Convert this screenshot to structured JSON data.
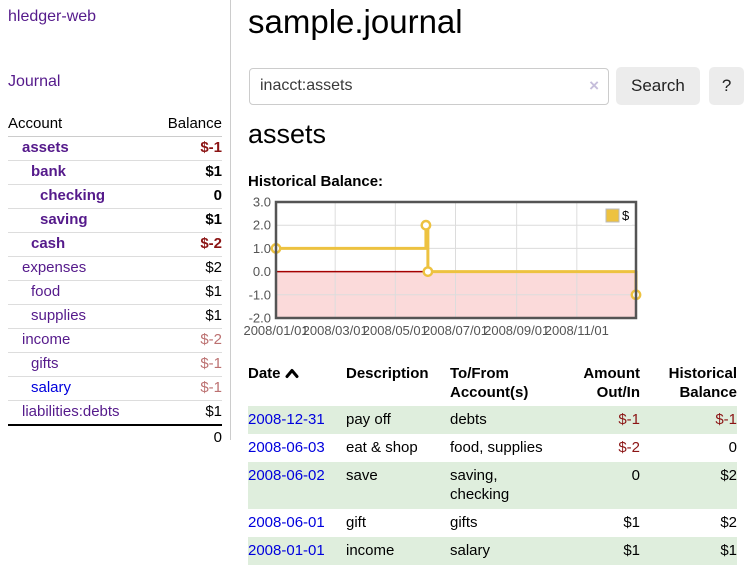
{
  "brand": {
    "label": "hledger-web"
  },
  "nav": {
    "journal_label": "Journal"
  },
  "sidebar": {
    "columns": {
      "account": "Account",
      "balance": "Balance"
    },
    "accounts": [
      {
        "name": "assets",
        "balance": "$-1",
        "indent": 1,
        "bold": true,
        "balance_tone": "negative-strong"
      },
      {
        "name": "bank",
        "balance": "$1",
        "indent": 2,
        "bold": true
      },
      {
        "name": "checking",
        "balance": "0",
        "indent": 3,
        "bold": true
      },
      {
        "name": "saving",
        "balance": "$1",
        "indent": 3,
        "bold": true
      },
      {
        "name": "cash",
        "balance": "$-2",
        "indent": 2,
        "bold": true,
        "balance_tone": "negative-strong"
      },
      {
        "name": "expenses",
        "balance": "$2",
        "indent": 1
      },
      {
        "name": "food",
        "balance": "$1",
        "indent": 2
      },
      {
        "name": "supplies",
        "balance": "$1",
        "indent": 2
      },
      {
        "name": "income",
        "balance": "$-2",
        "indent": 1,
        "balance_tone": "negative-faded"
      },
      {
        "name": "gifts",
        "balance": "$-1",
        "indent": 2,
        "balance_tone": "negative-faded"
      },
      {
        "name": "salary",
        "balance": "$-1",
        "indent": 2,
        "balance_tone": "negative-faded",
        "link_tone": "unvisited"
      },
      {
        "name": "liabilities:debts",
        "balance": "$1",
        "indent": 1
      }
    ],
    "total": "0"
  },
  "page": {
    "title": "sample.journal",
    "account_heading": "assets",
    "chart_heading": "Historical Balance:"
  },
  "search": {
    "value": "inacct:assets",
    "clear_label": "×",
    "submit_label": "Search",
    "help_label": "?"
  },
  "chart_data": {
    "type": "line",
    "step": true,
    "title": "Historical Balance:",
    "x_range": [
      "2008-01-01",
      "2008-12-31"
    ],
    "ylim": [
      -2,
      3
    ],
    "y_ticks": [
      {
        "value": 3,
        "label": "3.0"
      },
      {
        "value": 2,
        "label": "2.0"
      },
      {
        "value": 1,
        "label": "1.0"
      },
      {
        "value": 0,
        "label": "0.0"
      },
      {
        "value": -1,
        "label": "-1.0"
      },
      {
        "value": -2,
        "label": "-2.0"
      }
    ],
    "x_ticks": [
      {
        "date": "2008-01-01",
        "label": "2008/01/01"
      },
      {
        "date": "2008-03-01",
        "label": "2008/03/01"
      },
      {
        "date": "2008-05-01",
        "label": "2008/05/01"
      },
      {
        "date": "2008-07-01",
        "label": "2008/07/01"
      },
      {
        "date": "2008-09-01",
        "label": "2008/09/01"
      },
      {
        "date": "2008-11-01",
        "label": "2008/11/01"
      }
    ],
    "series": [
      {
        "name": "$",
        "color": "#edc240",
        "points": [
          {
            "date": "2008-01-01",
            "value": 1
          },
          {
            "date": "2008-06-01",
            "value": 2
          },
          {
            "date": "2008-06-03",
            "value": 0
          },
          {
            "date": "2008-12-31",
            "value": -1
          }
        ]
      }
    ],
    "legend": {
      "label": "$",
      "position": "top-right"
    },
    "grid": true,
    "zero_line_color": "#a40000",
    "negative_region_color": "#fbdada",
    "grid_color": "#dcdcdc",
    "border_color": "#545454"
  },
  "register": {
    "columns": [
      {
        "label": "Date",
        "sorted": "asc",
        "align": "left"
      },
      {
        "label": "Description",
        "align": "left"
      },
      {
        "label": "To/From Account(s)",
        "align": "left"
      },
      {
        "label": "Amount Out/In",
        "align": "right"
      },
      {
        "label": "Historical Balance",
        "align": "right"
      }
    ],
    "rows": [
      {
        "date": "2008-12-31",
        "description": "pay off",
        "accounts": "debts",
        "amount": "$-1",
        "balance": "$-1"
      },
      {
        "date": "2008-06-03",
        "description": "eat & shop",
        "accounts": "food, supplies",
        "amount": "$-2",
        "balance": "0"
      },
      {
        "date": "2008-06-02",
        "description": "save",
        "accounts": "saving, checking",
        "amount": "0",
        "balance": "$2"
      },
      {
        "date": "2008-06-01",
        "description": "gift",
        "accounts": "gifts",
        "amount": "$1",
        "balance": "$2"
      },
      {
        "date": "2008-01-01",
        "description": "income",
        "accounts": "salary",
        "amount": "$1",
        "balance": "$1"
      }
    ]
  }
}
